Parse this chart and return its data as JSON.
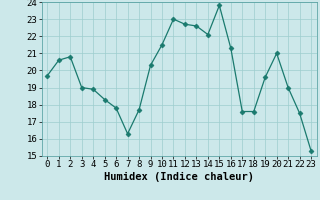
{
  "x": [
    0,
    1,
    2,
    3,
    4,
    5,
    6,
    7,
    8,
    9,
    10,
    11,
    12,
    13,
    14,
    15,
    16,
    17,
    18,
    19,
    20,
    21,
    22,
    23
  ],
  "y": [
    19.7,
    20.6,
    20.8,
    19.0,
    18.9,
    18.3,
    17.8,
    16.3,
    17.7,
    20.3,
    21.5,
    23.0,
    22.7,
    22.6,
    22.1,
    23.8,
    21.3,
    17.6,
    17.6,
    19.6,
    21.0,
    19.0,
    17.5,
    15.3
  ],
  "xlabel": "Humidex (Indice chaleur)",
  "ylim": [
    15,
    24
  ],
  "xlim": [
    -0.5,
    23.5
  ],
  "line_color": "#1a7a6e",
  "bg_color": "#cce8ea",
  "grid_color": "#9ecece",
  "tick_label_fontsize": 6.5,
  "xlabel_fontsize": 7.5,
  "marker": "D",
  "markersize": 2.5
}
